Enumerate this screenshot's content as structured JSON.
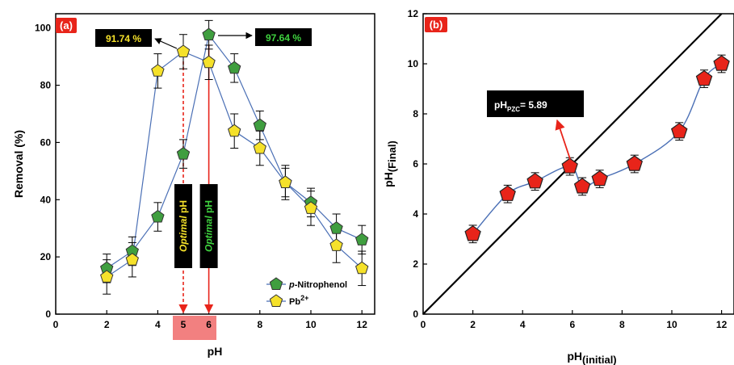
{
  "colors": {
    "nitrophenol": "#3f9e3f",
    "lead": "#f5e12a",
    "ph_points": "#e8241a",
    "blue_line": "#4a6fb5",
    "label_box": "#e8241a",
    "callout_box": "#000000",
    "callout_yellow": "#f5e12a",
    "callout_green": "#3fd23f",
    "highlight": "#f28080"
  },
  "panel_a": {
    "label": "(a)",
    "callout_lead": "91.74 %",
    "callout_nitro": "97.64 %",
    "optimal_lead": "Optimal pH",
    "optimal_nitro": "Optimal pH",
    "legend": {
      "nitro_prefix": "p",
      "nitro_suffix": "-Nitrophenol",
      "lead": "Pb",
      "lead_sup": "2+"
    }
  },
  "panel_b": {
    "label": "(b)",
    "pzc_prefix": "pH",
    "pzc_sub": "PZC",
    "pzc_suffix": "= 5.89"
  },
  "chart_data": [
    {
      "type": "line",
      "xlabel": "pH",
      "ylabel": "Removal (%)",
      "xlim": [
        0,
        12.5
      ],
      "ylim": [
        0,
        105
      ],
      "xticks": [
        "0",
        "2",
        "4",
        "5",
        "6",
        "8",
        "10",
        "12"
      ],
      "yticks": [
        "0",
        "20",
        "40",
        "60",
        "80",
        "100"
      ],
      "series": [
        {
          "name": "p-Nitrophenol",
          "x": [
            2,
            3,
            4,
            5,
            6,
            7,
            8,
            9,
            10,
            11,
            12
          ],
          "y": [
            16,
            22,
            34,
            56,
            97.64,
            86,
            66,
            46,
            39,
            30,
            26
          ],
          "err": [
            5,
            5,
            5,
            5,
            5,
            5,
            5,
            5,
            5,
            5,
            5
          ]
        },
        {
          "name": "Pb2+",
          "x": [
            2,
            3,
            4,
            5,
            6,
            7,
            8,
            9,
            10,
            11,
            12
          ],
          "y": [
            13,
            19,
            85,
            91.74,
            88,
            64,
            58,
            46,
            37,
            24,
            16
          ],
          "err": [
            6,
            6,
            6,
            6,
            6,
            6,
            6,
            6,
            6,
            6,
            6
          ]
        }
      ]
    },
    {
      "type": "scatter",
      "xlabel": "pH(initial)",
      "ylabel": "pH(Final)",
      "xlim": [
        0,
        12.5
      ],
      "ylim": [
        0,
        12
      ],
      "xticks": [
        "0",
        "2",
        "4",
        "6",
        "8",
        "10",
        "12"
      ],
      "yticks": [
        "0",
        "2",
        "4",
        "6",
        "8",
        "10",
        "12"
      ],
      "series": [
        {
          "x": [
            2,
            3.4,
            4.5,
            5.9,
            6.4,
            7.1,
            8.5,
            10.3,
            11.3,
            12
          ],
          "y": [
            3.2,
            4.8,
            5.3,
            5.9,
            5.1,
            5.4,
            6.0,
            7.3,
            9.4,
            10.0
          ],
          "err": [
            0.35,
            0.35,
            0.35,
            0.35,
            0.35,
            0.35,
            0.35,
            0.35,
            0.35,
            0.35
          ]
        }
      ],
      "reference_line": {
        "x": [
          0,
          12.5
        ],
        "y": [
          0,
          12.5
        ]
      }
    }
  ]
}
